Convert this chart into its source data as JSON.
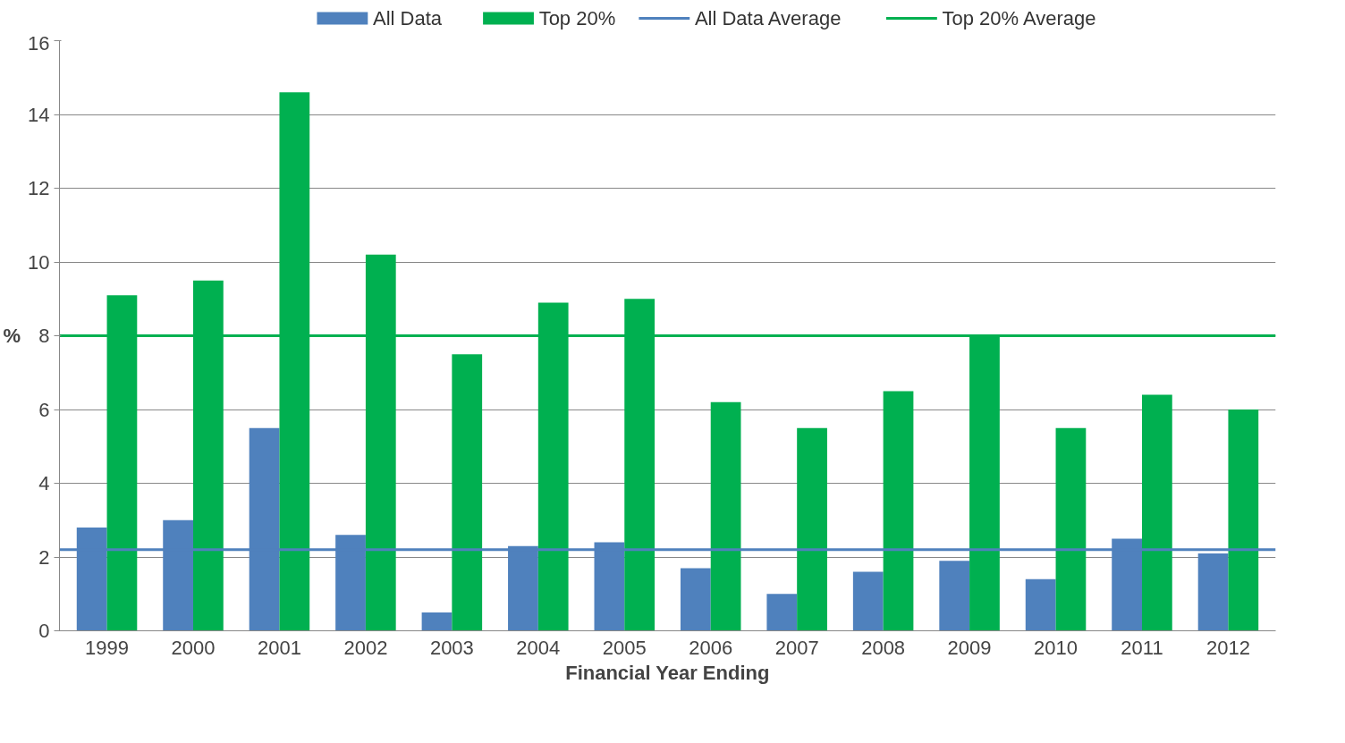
{
  "chart_data": {
    "type": "bar",
    "xlabel": "Financial Year Ending",
    "ylabel": "%",
    "categories": [
      "1999",
      "2000",
      "2001",
      "2002",
      "2003",
      "2004",
      "2005",
      "2006",
      "2007",
      "2008",
      "2009",
      "2010",
      "2011",
      "2012"
    ],
    "series": [
      {
        "name": "All Data",
        "color": "#4f81bd",
        "values": [
          2.8,
          3.0,
          5.5,
          2.6,
          0.5,
          2.3,
          2.4,
          1.7,
          1.0,
          1.6,
          1.9,
          1.4,
          2.5,
          2.1
        ]
      },
      {
        "name": "Top 20%",
        "color": "#00b050",
        "values": [
          9.1,
          9.5,
          14.6,
          10.2,
          7.5,
          8.9,
          9.0,
          6.2,
          5.5,
          6.5,
          8.0,
          5.5,
          6.4,
          6.0
        ]
      }
    ],
    "ref_lines": [
      {
        "axis": "y",
        "value": 2.2,
        "label": "All Data Average",
        "color": "#4f81bd",
        "line_style": "solid"
      },
      {
        "axis": "y",
        "value": 8.0,
        "label": "Top 20% Average",
        "color": "#00b050",
        "line_style": "solid"
      }
    ],
    "ylim": [
      0,
      16
    ],
    "yticks": [
      0,
      2,
      4,
      6,
      8,
      10,
      12,
      14,
      16
    ],
    "grid": "y",
    "legend": "top"
  }
}
